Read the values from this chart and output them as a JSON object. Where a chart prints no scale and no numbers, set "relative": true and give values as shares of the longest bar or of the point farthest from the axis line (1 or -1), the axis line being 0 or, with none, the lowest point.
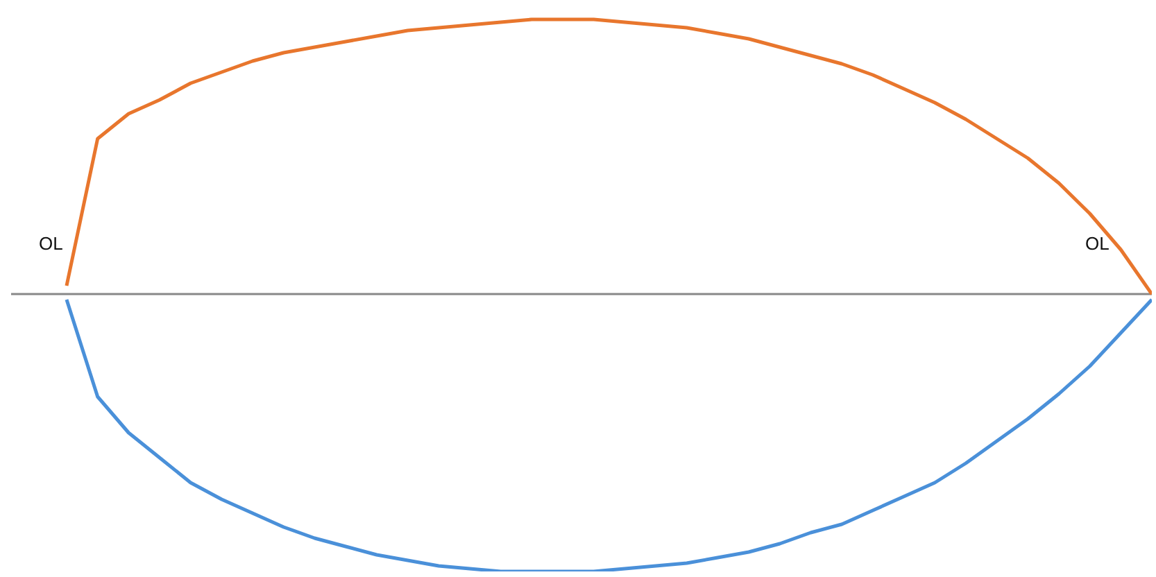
{
  "chart_data": {
    "type": "line",
    "relative": true,
    "categories": [
      null,
      null,
      null,
      null,
      null,
      null,
      null,
      null,
      null,
      null,
      null,
      null,
      null,
      null,
      null,
      null,
      null,
      null,
      null,
      null,
      null,
      null,
      null,
      null,
      null,
      null,
      null,
      null,
      null,
      null,
      null,
      null,
      null,
      null,
      null,
      null
    ],
    "series": [
      {
        "color": "#e8762d",
        "values": [
          0.03,
          0.56,
          0.65,
          0.7,
          0.76,
          0.8,
          0.84,
          0.87,
          0.89,
          0.91,
          0.93,
          0.95,
          0.96,
          0.97,
          0.98,
          0.99,
          0.99,
          0.99,
          0.98,
          0.97,
          0.96,
          0.94,
          0.92,
          0.89,
          0.86,
          0.83,
          0.79,
          0.74,
          0.69,
          0.63,
          0.56,
          0.49,
          0.4,
          0.29,
          0.16,
          0
        ]
      },
      {
        "color": "#4a90d9",
        "values": [
          -0.02,
          -0.37,
          -0.5,
          -0.59,
          -0.68,
          -0.74,
          -0.79,
          -0.84,
          -0.88,
          -0.91,
          -0.94,
          -0.96,
          -0.98,
          -0.99,
          -1,
          -1,
          -1,
          -1,
          -0.99,
          -0.98,
          -0.97,
          -0.95,
          -0.93,
          -0.9,
          -0.86,
          -0.83,
          -0.78,
          -0.73,
          -0.68,
          -0.61,
          -0.53,
          -0.45,
          -0.36,
          -0.26,
          -0.14,
          -0.02
        ]
      }
    ],
    "annotations": [
      "OL",
      "OL"
    ],
    "legend": false,
    "grid": false,
    "marker": "none",
    "line_style": "solid"
  }
}
